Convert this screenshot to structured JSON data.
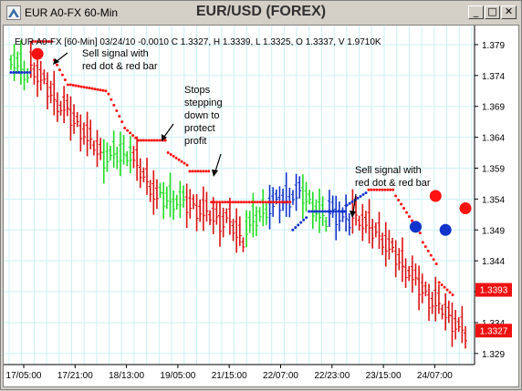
{
  "window": {
    "title": "EUR A0-FX 60-Min",
    "minimize_label": "_",
    "maximize_label": "□",
    "close_label": "✕",
    "icon": "chart-app-icon"
  },
  "chart_data": {
    "type": "bar",
    "title": "EUR/USD (FOREX)",
    "info_line": "EUR A0-FX [60-Min] 03/24/10  -0.0010 C 1.3327, H 1.3339, L 1.3325, O 1.3337, V 1.9710K",
    "ylim": [
      1.3275,
      1.3815
    ],
    "y_ticks": [
      "1.329",
      "1.334",
      "1.339",
      "1.344",
      "1.349",
      "1.354",
      "1.359",
      "1.364",
      "1.369",
      "1.374",
      "1.379"
    ],
    "x_tick_labels": [
      "17/05:00",
      "17/21:00",
      "18/13:00",
      "19/05:00",
      "21/15:00",
      "22/07:00",
      "22/23:00",
      "23/15:00",
      "24/07:00"
    ],
    "price_badges": [
      {
        "label": "1.3393",
        "value": 1.3393
      },
      {
        "label": "1.3327",
        "value": 1.3327
      }
    ],
    "grid": true,
    "series": [
      {
        "role": "ohlc_bars",
        "colors": {
          "up": "#22dd22",
          "down": "#dd1111",
          "neutral": "#1133cc"
        },
        "segments": [
          {
            "start": 1.377,
            "end": 1.374,
            "n": 6,
            "color": "#22dd22"
          },
          {
            "start": 1.376,
            "end": 1.369,
            "n": 10,
            "color": "#dd1111"
          },
          {
            "start": 1.369,
            "end": 1.3615,
            "n": 12,
            "color": "#dd1111"
          },
          {
            "start": 1.361,
            "end": 1.3615,
            "n": 9,
            "color": "#22dd22"
          },
          {
            "start": 1.3605,
            "end": 1.3545,
            "n": 8,
            "color": "#dd1111"
          },
          {
            "start": 1.3545,
            "end": 1.3535,
            "n": 8,
            "color": "#22dd22"
          },
          {
            "start": 1.3535,
            "end": 1.3505,
            "n": 12,
            "color": "#dd1111"
          },
          {
            "start": 1.351,
            "end": 1.3475,
            "n": 6,
            "color": "#dd1111"
          },
          {
            "start": 1.3495,
            "end": 1.3525,
            "n": 7,
            "color": "#22dd22"
          },
          {
            "start": 1.353,
            "end": 1.355,
            "n": 10,
            "color": "#1133cc"
          },
          {
            "start": 1.355,
            "end": 1.3505,
            "n": 8,
            "color": "#22dd22"
          },
          {
            "start": 1.3525,
            "end": 1.3505,
            "n": 7,
            "color": "#1133cc"
          },
          {
            "start": 1.352,
            "end": 1.349,
            "n": 7,
            "color": "#dd1111"
          },
          {
            "start": 1.349,
            "end": 1.3375,
            "n": 18,
            "color": "#dd1111"
          },
          {
            "start": 1.3375,
            "end": 1.3322,
            "n": 10,
            "color": "#dd1111"
          }
        ]
      },
      {
        "role": "trailing_stop_dots",
        "color_sell": "#ff1111",
        "color_buy": "#1133cc",
        "segments": [
          {
            "start": 1.3745,
            "end": 1.3745,
            "n": 8,
            "color": "#1133cc"
          },
          {
            "start": 1.3795,
            "end": 1.3795,
            "n": 8,
            "color": "#ff1111"
          },
          {
            "start": 1.3765,
            "end": 1.3725,
            "n": 6,
            "color": "#ff1111"
          },
          {
            "start": 1.3725,
            "end": 1.3715,
            "n": 14,
            "color": "#ff1111"
          },
          {
            "start": 1.371,
            "end": 1.3665,
            "n": 6,
            "color": "#ff1111"
          },
          {
            "start": 1.3655,
            "end": 1.3635,
            "n": 6,
            "color": "#ff1111"
          },
          {
            "start": 1.3635,
            "end": 1.3635,
            "n": 10,
            "color": "#ff1111"
          },
          {
            "start": 1.3615,
            "end": 1.3595,
            "n": 8,
            "color": "#ff1111"
          },
          {
            "start": 1.3585,
            "end": 1.3585,
            "n": 8,
            "color": "#ff1111"
          },
          {
            "start": 1.3535,
            "end": 1.3535,
            "n": 30,
            "color": "#ff1111"
          },
          {
            "start": 1.349,
            "end": 1.351,
            "n": 6,
            "color": "#1133cc"
          },
          {
            "start": 1.352,
            "end": 1.352,
            "n": 14,
            "color": "#1133cc"
          },
          {
            "start": 1.353,
            "end": 1.355,
            "n": 8,
            "color": "#1133cc"
          },
          {
            "start": 1.3555,
            "end": 1.3555,
            "n": 10,
            "color": "#ff1111"
          },
          {
            "start": 1.3545,
            "end": 1.3485,
            "n": 10,
            "color": "#ff1111"
          },
          {
            "start": 1.347,
            "end": 1.3435,
            "n": 6,
            "color": "#ff1111"
          },
          {
            "start": 1.3405,
            "end": 1.3385,
            "n": 6,
            "color": "#ff1111"
          }
        ]
      }
    ],
    "signals": [
      {
        "type": "sell",
        "color": "#ff1111",
        "bar_index": 8,
        "value": 1.3775
      },
      {
        "type": "sell",
        "color": "#ff1111",
        "bar_index": 128,
        "value": 1.3545
      },
      {
        "type": "buy",
        "color": "#1133cc",
        "bar_index": 122,
        "value": 1.3495
      },
      {
        "type": "buy",
        "color": "#1133cc",
        "bar_index": 131,
        "value": 1.349
      },
      {
        "type": "sell",
        "color": "#ff1111",
        "bar_index": 168,
        "value": 1.3525
      }
    ],
    "annotations": [
      {
        "lines": [
          "Sell signal with",
          "red dot & red bar"
        ],
        "pointer": "left"
      },
      {
        "lines": [
          "Stops",
          "stepping",
          "down to",
          "protect",
          "profit"
        ],
        "pointer": "down"
      },
      {
        "lines": [
          "Sell signal with",
          "red dot & red bar"
        ],
        "pointer": "down"
      }
    ]
  }
}
